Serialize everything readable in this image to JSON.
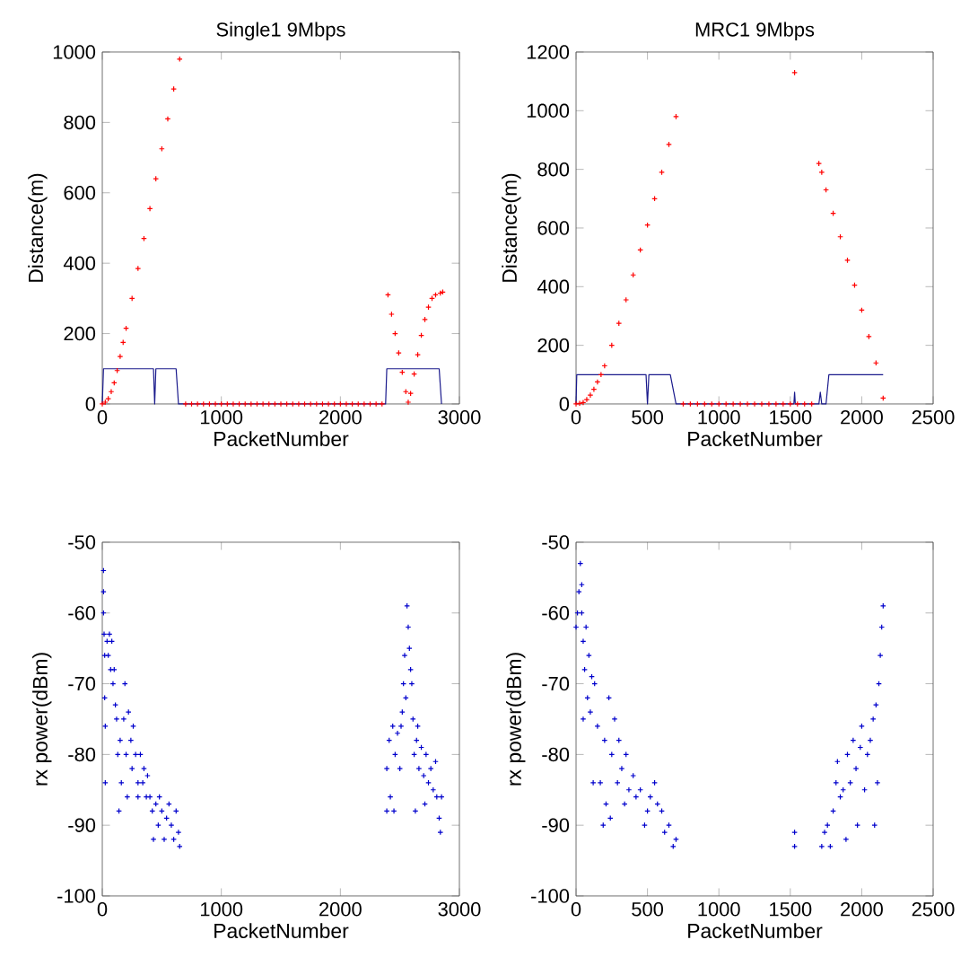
{
  "chart_data": [
    {
      "type": "scatter",
      "title": "Single1 9Mbps",
      "xlabel": "PacketNumber",
      "ylabel": "Distance(m)",
      "xlim": [
        0,
        3000
      ],
      "ylim": [
        0,
        1000
      ],
      "xticks": [
        0,
        1000,
        2000,
        3000
      ],
      "yticks": [
        0,
        200,
        400,
        600,
        800,
        1000
      ],
      "marker": "cross",
      "series": [
        {
          "type": "line",
          "color": "#1a1a8c",
          "marker": "none",
          "x": [
            0,
            10,
            430,
            440,
            450,
            620,
            640,
            2380,
            2390,
            2830,
            2850
          ],
          "values": [
            0,
            100,
            100,
            0,
            100,
            100,
            0,
            0,
            100,
            100,
            0
          ]
        },
        {
          "color": "#ff0000",
          "x": [
            0,
            25,
            50,
            75,
            100,
            125,
            150,
            175,
            200,
            250,
            300,
            350,
            400,
            450,
            500,
            550,
            600,
            650,
            700,
            750,
            800,
            850,
            900,
            950,
            1000,
            1050,
            1100,
            1150,
            1200,
            1250,
            1300,
            1350,
            1400,
            1450,
            1500,
            1550,
            1600,
            1650,
            1700,
            1750,
            1800,
            1850,
            1900,
            1950,
            2000,
            2050,
            2100,
            2150,
            2200,
            2250,
            2300,
            2350,
            2400,
            2430,
            2460,
            2490,
            2520,
            2550,
            2570,
            2590,
            2620,
            2650,
            2680,
            2710,
            2740,
            2770,
            2800,
            2840,
            2860
          ],
          "values": [
            0,
            5,
            15,
            35,
            60,
            95,
            135,
            175,
            215,
            300,
            385,
            470,
            555,
            640,
            725,
            810,
            895,
            980,
            0,
            0,
            0,
            0,
            0,
            0,
            0,
            0,
            0,
            0,
            0,
            0,
            0,
            0,
            0,
            0,
            0,
            0,
            0,
            0,
            0,
            0,
            0,
            0,
            0,
            0,
            0,
            0,
            0,
            0,
            0,
            0,
            0,
            0,
            310,
            255,
            200,
            145,
            90,
            35,
            5,
            30,
            85,
            140,
            195,
            240,
            275,
            300,
            310,
            315,
            318
          ]
        }
      ]
    },
    {
      "type": "scatter",
      "title": "MRC1 9Mbps",
      "xlabel": "PacketNumber",
      "ylabel": "Distance(m)",
      "xlim": [
        0,
        2500
      ],
      "ylim": [
        0,
        1200
      ],
      "xticks": [
        0,
        500,
        1000,
        1500,
        2000,
        2500
      ],
      "yticks": [
        0,
        200,
        400,
        600,
        800,
        1000,
        1200
      ],
      "marker": "cross",
      "series": [
        {
          "type": "line",
          "color": "#1a1a8c",
          "marker": "none",
          "x": [
            0,
            5,
            490,
            500,
            510,
            660,
            700,
            1525,
            1530,
            1535,
            1700,
            1710,
            1720,
            1750,
            1770,
            2150
          ],
          "values": [
            0,
            100,
            100,
            0,
            100,
            100,
            0,
            0,
            40,
            0,
            0,
            40,
            0,
            0,
            100,
            100
          ]
        },
        {
          "color": "#ff0000",
          "x": [
            0,
            25,
            50,
            75,
            100,
            125,
            150,
            175,
            200,
            250,
            300,
            350,
            400,
            450,
            500,
            550,
            600,
            650,
            700,
            750,
            800,
            850,
            900,
            950,
            1000,
            1050,
            1100,
            1150,
            1200,
            1250,
            1300,
            1350,
            1400,
            1450,
            1500,
            1530,
            1550,
            1600,
            1650,
            1700,
            1720,
            1750,
            1800,
            1850,
            1900,
            1950,
            2000,
            2050,
            2100,
            2150
          ],
          "values": [
            0,
            2,
            5,
            15,
            30,
            50,
            75,
            100,
            130,
            200,
            275,
            355,
            440,
            525,
            610,
            700,
            790,
            885,
            980,
            0,
            0,
            0,
            0,
            0,
            0,
            0,
            0,
            0,
            0,
            0,
            0,
            0,
            0,
            0,
            0,
            1130,
            0,
            0,
            0,
            820,
            790,
            730,
            650,
            570,
            490,
            405,
            320,
            230,
            140,
            20
          ]
        }
      ]
    },
    {
      "type": "scatter",
      "xlabel": "PacketNumber",
      "ylabel": "rx power(dBm)",
      "xlim": [
        0,
        3000
      ],
      "ylim": [
        -100,
        -50
      ],
      "xticks": [
        0,
        1000,
        2000,
        3000
      ],
      "yticks": [
        -100,
        -90,
        -80,
        -70,
        -60,
        -50
      ],
      "marker": "cross",
      "series": [
        {
          "color": "#0000cc",
          "x": [
            10,
            10,
            10,
            15,
            20,
            20,
            25,
            25,
            40,
            50,
            60,
            70,
            80,
            90,
            100,
            110,
            120,
            130,
            140,
            150,
            160,
            180,
            190,
            200,
            210,
            220,
            240,
            250,
            260,
            280,
            300,
            300,
            320,
            340,
            350,
            370,
            380,
            400,
            420,
            430,
            450,
            470,
            480,
            500,
            520,
            540,
            560,
            580,
            600,
            620,
            640,
            650,
            2390,
            2390,
            2410,
            2420,
            2440,
            2450,
            2460,
            2480,
            2500,
            2510,
            2520,
            2530,
            2540,
            2550,
            2560,
            2570,
            2580,
            2590,
            2600,
            2610,
            2620,
            2630,
            2640,
            2650,
            2660,
            2680,
            2700,
            2710,
            2720,
            2740,
            2760,
            2780,
            2800,
            2810,
            2830,
            2840,
            2850
          ],
          "values": [
            -54,
            -57,
            -60,
            -63,
            -66,
            -72,
            -76,
            -84,
            -64,
            -66,
            -63,
            -68,
            -64,
            -70,
            -68,
            -73,
            -75,
            -80,
            -88,
            -78,
            -84,
            -75,
            -70,
            -80,
            -86,
            -74,
            -78,
            -82,
            -76,
            -80,
            -84,
            -86,
            -80,
            -84,
            -82,
            -86,
            -83,
            -86,
            -88,
            -92,
            -87,
            -90,
            -86,
            -88,
            -92,
            -89,
            -87,
            -90,
            -92,
            -88,
            -91,
            -93,
            -82,
            -88,
            -78,
            -86,
            -76,
            -88,
            -80,
            -77,
            -82,
            -76,
            -74,
            -70,
            -66,
            -72,
            -59,
            -62,
            -65,
            -68,
            -70,
            -75,
            -80,
            -88,
            -78,
            -76,
            -82,
            -79,
            -83,
            -87,
            -80,
            -84,
            -82,
            -85,
            -81,
            -86,
            -89,
            -91,
            -86
          ]
        }
      ]
    },
    {
      "type": "scatter",
      "xlabel": "PacketNumber",
      "ylabel": "rx power(dBm)",
      "xlim": [
        0,
        2500
      ],
      "ylim": [
        -100,
        -50
      ],
      "xticks": [
        0,
        500,
        1000,
        1500,
        2000,
        2500
      ],
      "yticks": [
        -100,
        -90,
        -80,
        -70,
        -60,
        -50
      ],
      "marker": "cross",
      "series": [
        {
          "color": "#0000cc",
          "x": [
            0,
            10,
            20,
            30,
            40,
            40,
            50,
            50,
            60,
            70,
            80,
            90,
            100,
            110,
            120,
            130,
            150,
            170,
            190,
            200,
            210,
            230,
            240,
            250,
            270,
            290,
            300,
            320,
            340,
            350,
            370,
            400,
            420,
            450,
            480,
            500,
            520,
            550,
            570,
            600,
            620,
            650,
            680,
            700,
            1530,
            1530,
            1720,
            1740,
            1760,
            1780,
            1800,
            1820,
            1830,
            1850,
            1870,
            1890,
            1900,
            1920,
            1940,
            1960,
            1970,
            1990,
            2000,
            2020,
            2040,
            2060,
            2080,
            2090,
            2100,
            2110,
            2120,
            2130,
            2140,
            2150
          ],
          "values": [
            -62,
            -60,
            -57,
            -53,
            -56,
            -60,
            -64,
            -75,
            -68,
            -62,
            -72,
            -66,
            -74,
            -69,
            -84,
            -70,
            -76,
            -84,
            -90,
            -78,
            -87,
            -72,
            -89,
            -80,
            -75,
            -84,
            -78,
            -82,
            -87,
            -80,
            -85,
            -83,
            -86,
            -85,
            -90,
            -88,
            -86,
            -84,
            -87,
            -88,
            -91,
            -90,
            -93,
            -92,
            -91,
            -93,
            -93,
            -91,
            -90,
            -93,
            -88,
            -84,
            -81,
            -86,
            -85,
            -92,
            -80,
            -84,
            -78,
            -82,
            -90,
            -79,
            -76,
            -85,
            -80,
            -78,
            -75,
            -90,
            -73,
            -84,
            -70,
            -66,
            -62,
            -59
          ]
        }
      ]
    }
  ]
}
